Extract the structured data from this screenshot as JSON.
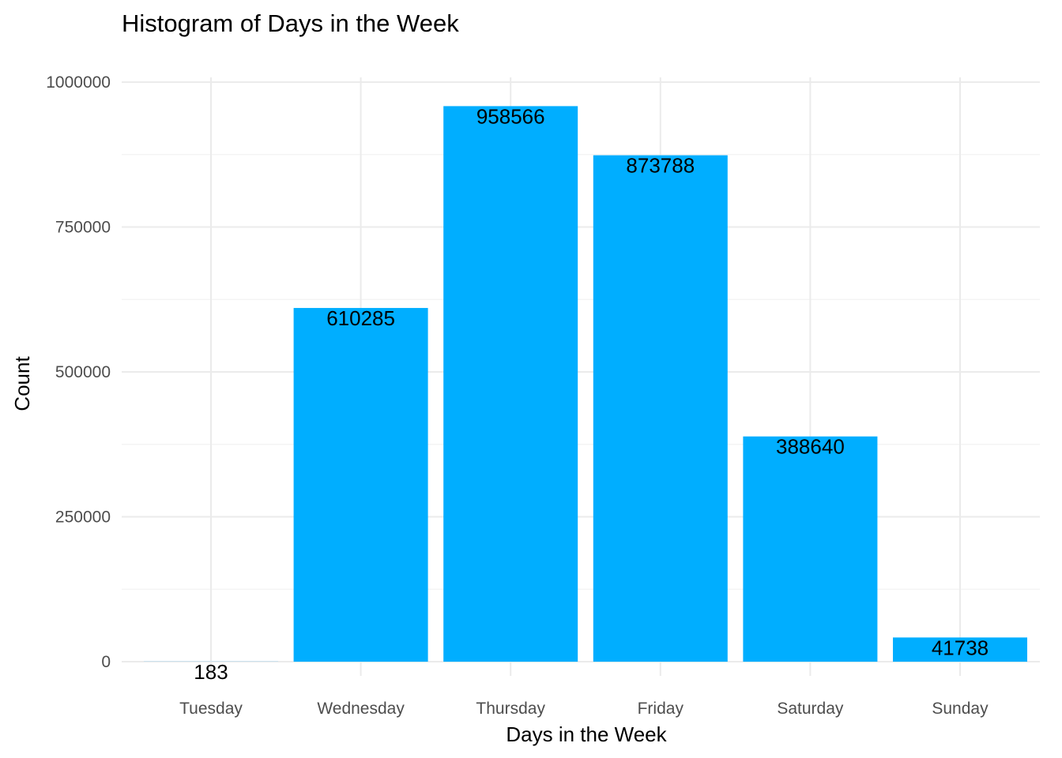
{
  "chart_data": {
    "type": "bar",
    "title": "Histogram of Days in the Week",
    "xlabel": "Days in the Week",
    "ylabel": "Count",
    "categories": [
      "Tuesday",
      "Wednesday",
      "Thursday",
      "Friday",
      "Saturday",
      "Sunday"
    ],
    "values": [
      183,
      610285,
      958566,
      873788,
      388640,
      41738
    ],
    "ylim": [
      0,
      1000000
    ],
    "yticks": [
      0,
      250000,
      500000,
      750000,
      1000000
    ],
    "ytick_labels": [
      "0",
      "250000",
      "500000",
      "750000",
      "1000000"
    ],
    "grid": true,
    "legend": "none",
    "bar_color": "#00AEFF"
  }
}
